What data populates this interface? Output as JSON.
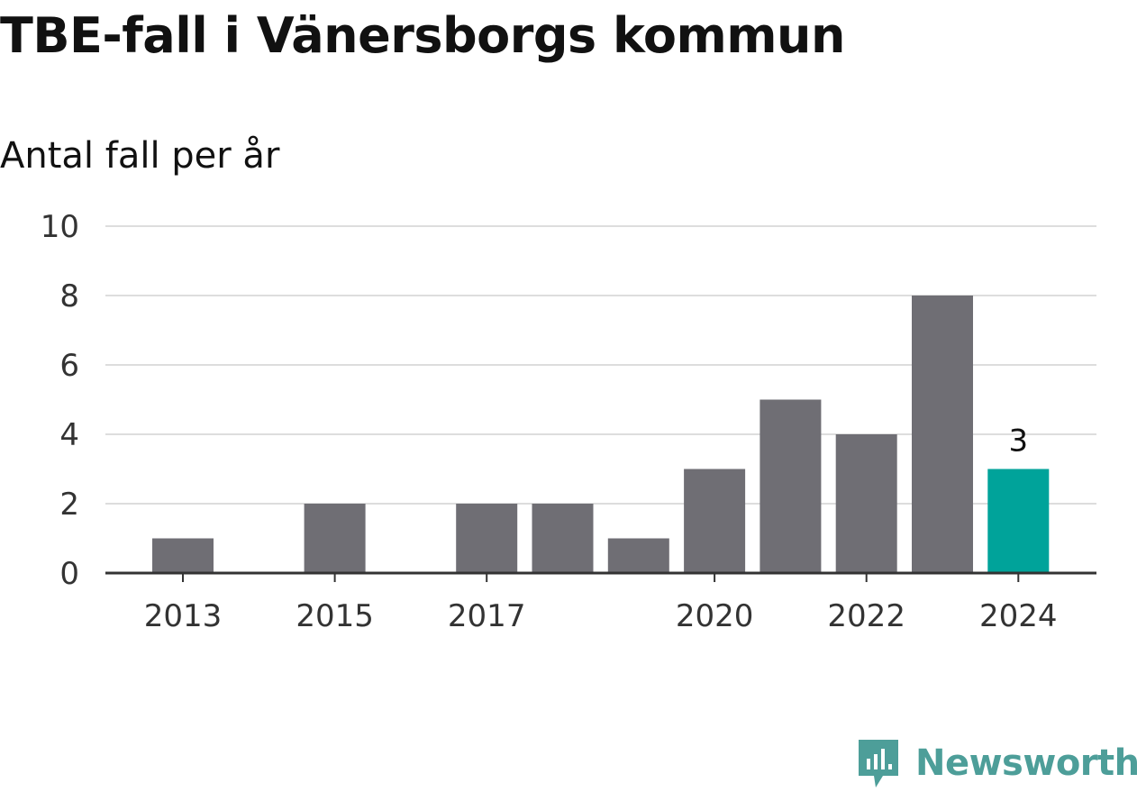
{
  "title": "TBE-fall i Vänersborgs kommun",
  "subtitle": "Antal fall per år",
  "brand": {
    "name": "Newsworthy",
    "color": "#4d9e99",
    "icon": "newsworthy-logo-icon"
  },
  "colors": {
    "bar": "#6f6e74",
    "highlight": "#00a39a",
    "grid": "#dddddd",
    "axis": "#333333"
  },
  "chart_data": {
    "type": "bar",
    "title": "TBE-fall i Vänersborgs kommun",
    "subtitle": "Antal fall per år",
    "categories": [
      "2013",
      "2014",
      "2015",
      "2016",
      "2017",
      "2018",
      "2019",
      "2020",
      "2021",
      "2022",
      "2023",
      "2024"
    ],
    "values": [
      1,
      0,
      2,
      0,
      2,
      2,
      1,
      3,
      5,
      4,
      8,
      3
    ],
    "x_tick_labels": [
      "2013",
      "2015",
      "2017",
      "2020",
      "2022",
      "2024"
    ],
    "y_ticks": [
      0,
      2,
      4,
      6,
      8,
      10
    ],
    "ylim": [
      0,
      10
    ],
    "highlight_category": "2024",
    "data_labels": [
      {
        "category": "2024",
        "text": "3"
      }
    ],
    "grid": true,
    "xlabel": "",
    "ylabel": ""
  }
}
